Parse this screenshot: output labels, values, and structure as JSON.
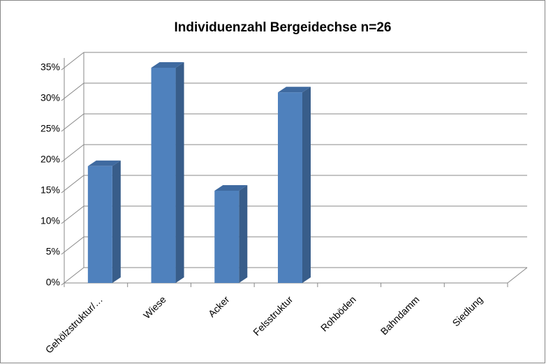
{
  "chart_data": {
    "type": "bar3d",
    "title": "Individuenzahl Bergeidechse n=26",
    "categories": [
      "Gehölzstruktur/…",
      "Wiese",
      "Acker",
      "Felsstruktur",
      "Rohböden",
      "Bahndamm",
      "Siedlung"
    ],
    "values": [
      19,
      35,
      15,
      31,
      0,
      0,
      0
    ],
    "color": "#4f81bd",
    "ylim": [
      0,
      35
    ],
    "yticks": [
      {
        "value": 0,
        "label": "0%"
      },
      {
        "value": 5,
        "label": "5%"
      },
      {
        "value": 10,
        "label": "10%"
      },
      {
        "value": 15,
        "label": "15%"
      },
      {
        "value": 20,
        "label": "20%"
      },
      {
        "value": 25,
        "label": "25%"
      },
      {
        "value": 30,
        "label": "30%"
      },
      {
        "value": 35,
        "label": "35%"
      }
    ],
    "grid": true
  }
}
